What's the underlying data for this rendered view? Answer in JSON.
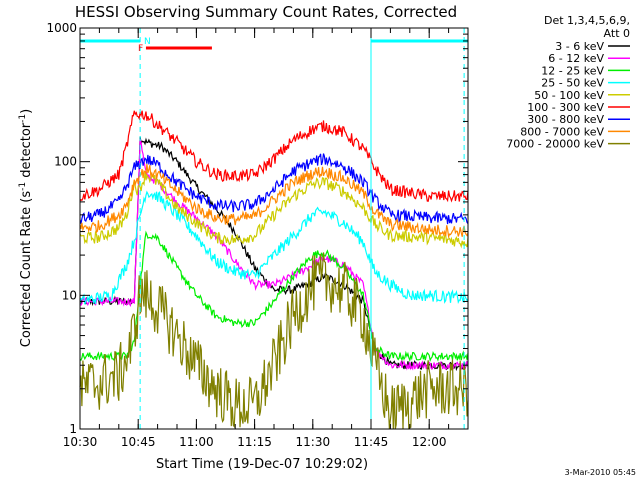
{
  "chart_data": {
    "type": "line",
    "title": "HESSI Observing Summary Count Rates, Corrected",
    "xlabel": "Start Time (19-Dec-07 10:29:02)",
    "ylabel_pre": "Corrected Count Rate (s",
    "ylabel_sup1": "-1",
    "ylabel_mid": " detector",
    "ylabel_sup2": "-1",
    "ylabel_post": ")",
    "y_scale": "log",
    "ylim": [
      1,
      1000
    ],
    "xlim_minutes": [
      0,
      100
    ],
    "x_ticks": [
      {
        "m": 0,
        "label": "10:30"
      },
      {
        "m": 15,
        "label": "10:45"
      },
      {
        "m": 30,
        "label": "11:00"
      },
      {
        "m": 45,
        "label": "11:15"
      },
      {
        "m": 60,
        "label": "11:30"
      },
      {
        "m": 75,
        "label": "11:45"
      },
      {
        "m": 90,
        "label": "12:00"
      }
    ],
    "y_ticks": [
      {
        "v": 1,
        "label": "1"
      },
      {
        "v": 10,
        "label": "10"
      },
      {
        "v": 100,
        "label": "100"
      },
      {
        "v": 1000,
        "label": "1000"
      }
    ],
    "legend_title_1": "Det 1,3,4,5,6,9,",
    "legend_title_2": "Att 0",
    "series": [
      {
        "name": "3 - 6 keV",
        "color": "#000000",
        "points": [
          [
            0,
            9
          ],
          [
            14,
            9
          ],
          [
            15.5,
            150
          ],
          [
            17,
            140
          ],
          [
            21,
            130
          ],
          [
            25,
            100
          ],
          [
            30,
            65
          ],
          [
            35,
            45
          ],
          [
            40,
            30
          ],
          [
            45,
            16
          ],
          [
            50,
            11
          ],
          [
            55,
            11
          ],
          [
            60,
            12.5
          ],
          [
            63,
            14
          ],
          [
            68,
            12
          ],
          [
            73,
            9
          ],
          [
            76,
            4
          ],
          [
            80,
            3
          ],
          [
            90,
            3
          ],
          [
            100,
            3
          ]
        ]
      },
      {
        "name": "6 - 12 keV",
        "color": "#ff00ff",
        "points": [
          [
            0,
            9
          ],
          [
            14,
            9
          ],
          [
            15.5,
            150
          ],
          [
            17,
            80
          ],
          [
            20,
            70
          ],
          [
            25,
            50
          ],
          [
            30,
            38
          ],
          [
            35,
            28
          ],
          [
            40,
            18
          ],
          [
            45,
            12
          ],
          [
            50,
            12
          ],
          [
            55,
            14
          ],
          [
            60,
            17
          ],
          [
            63,
            19
          ],
          [
            68,
            17
          ],
          [
            73,
            12
          ],
          [
            76,
            4
          ],
          [
            80,
            3
          ],
          [
            90,
            3
          ],
          [
            100,
            3
          ]
        ]
      },
      {
        "name": "12 - 25 keV",
        "color": "#00ee00",
        "points": [
          [
            0,
            3.5
          ],
          [
            12,
            3.5
          ],
          [
            14,
            4.5
          ],
          [
            15.5,
            12
          ],
          [
            17,
            29
          ],
          [
            20,
            27
          ],
          [
            25,
            16
          ],
          [
            30,
            10
          ],
          [
            35,
            7
          ],
          [
            40,
            6.2
          ],
          [
            45,
            6.2
          ],
          [
            50,
            9
          ],
          [
            55,
            14
          ],
          [
            60,
            20
          ],
          [
            63,
            21
          ],
          [
            68,
            16
          ],
          [
            73,
            10
          ],
          [
            76,
            4
          ],
          [
            80,
            3.5
          ],
          [
            90,
            3.5
          ],
          [
            100,
            3.5
          ]
        ]
      },
      {
        "name": "25 - 50 keV",
        "color": "#00ffff",
        "points": [
          [
            0,
            9
          ],
          [
            8,
            10
          ],
          [
            12,
            17
          ],
          [
            14,
            26
          ],
          [
            17,
            60
          ],
          [
            20,
            55
          ],
          [
            25,
            40
          ],
          [
            30,
            28
          ],
          [
            35,
            18
          ],
          [
            40,
            15
          ],
          [
            45,
            14
          ],
          [
            50,
            20
          ],
          [
            55,
            28
          ],
          [
            60,
            40
          ],
          [
            63,
            42
          ],
          [
            68,
            35
          ],
          [
            73,
            25
          ],
          [
            76,
            15
          ],
          [
            80,
            12
          ],
          [
            85,
            10
          ],
          [
            90,
            10
          ],
          [
            100,
            9.5
          ]
        ]
      },
      {
        "name": "50 - 100 keV",
        "color": "#cccc00",
        "points": [
          [
            0,
            27
          ],
          [
            5,
            27
          ],
          [
            10,
            32
          ],
          [
            12,
            40
          ],
          [
            14,
            70
          ],
          [
            15,
            60
          ],
          [
            17,
            80
          ],
          [
            20,
            70
          ],
          [
            25,
            45
          ],
          [
            30,
            35
          ],
          [
            35,
            27
          ],
          [
            40,
            26
          ],
          [
            45,
            28
          ],
          [
            50,
            40
          ],
          [
            55,
            55
          ],
          [
            60,
            68
          ],
          [
            63,
            70
          ],
          [
            68,
            60
          ],
          [
            73,
            45
          ],
          [
            76,
            34
          ],
          [
            80,
            28
          ],
          [
            90,
            27
          ],
          [
            100,
            25
          ]
        ]
      },
      {
        "name": "100 - 300 keV",
        "color": "#ff0000",
        "points": [
          [
            0,
            55
          ],
          [
            5,
            62
          ],
          [
            10,
            80
          ],
          [
            12,
            130
          ],
          [
            14,
            230
          ],
          [
            17,
            225
          ],
          [
            20,
            190
          ],
          [
            25,
            140
          ],
          [
            30,
            100
          ],
          [
            35,
            80
          ],
          [
            40,
            78
          ],
          [
            45,
            80
          ],
          [
            50,
            105
          ],
          [
            55,
            145
          ],
          [
            60,
            175
          ],
          [
            63,
            185
          ],
          [
            68,
            165
          ],
          [
            73,
            125
          ],
          [
            76,
            90
          ],
          [
            80,
            62
          ],
          [
            90,
            55
          ],
          [
            100,
            55
          ]
        ]
      },
      {
        "name": "300 - 800 keV",
        "color": "#0000ff",
        "points": [
          [
            0,
            37
          ],
          [
            5,
            40
          ],
          [
            10,
            50
          ],
          [
            12,
            65
          ],
          [
            14,
            90
          ],
          [
            17,
            105
          ],
          [
            20,
            95
          ],
          [
            25,
            70
          ],
          [
            30,
            55
          ],
          [
            35,
            47
          ],
          [
            40,
            46
          ],
          [
            45,
            48
          ],
          [
            50,
            62
          ],
          [
            55,
            85
          ],
          [
            60,
            100
          ],
          [
            63,
            105
          ],
          [
            68,
            92
          ],
          [
            73,
            70
          ],
          [
            76,
            52
          ],
          [
            80,
            40
          ],
          [
            90,
            38
          ],
          [
            100,
            37
          ]
        ]
      },
      {
        "name": "800 - 7000 keV",
        "color": "#ff8800",
        "points": [
          [
            0,
            32
          ],
          [
            5,
            33
          ],
          [
            10,
            40
          ],
          [
            12,
            48
          ],
          [
            14,
            70
          ],
          [
            17,
            88
          ],
          [
            20,
            80
          ],
          [
            25,
            60
          ],
          [
            30,
            45
          ],
          [
            35,
            38
          ],
          [
            40,
            37
          ],
          [
            45,
            39
          ],
          [
            50,
            52
          ],
          [
            55,
            70
          ],
          [
            60,
            82
          ],
          [
            63,
            85
          ],
          [
            68,
            75
          ],
          [
            73,
            58
          ],
          [
            76,
            42
          ],
          [
            80,
            34
          ],
          [
            90,
            31
          ],
          [
            100,
            30
          ]
        ]
      },
      {
        "name": "7000 - 20000 keV",
        "color": "#808000",
        "points": [
          [
            0,
            2
          ],
          [
            10,
            2.5
          ],
          [
            13,
            4
          ],
          [
            15.5,
            10
          ],
          [
            17,
            10
          ],
          [
            20,
            8
          ],
          [
            25,
            5
          ],
          [
            30,
            3
          ],
          [
            35,
            2
          ],
          [
            40,
            1.5
          ],
          [
            45,
            1.5
          ],
          [
            50,
            3
          ],
          [
            55,
            7
          ],
          [
            60,
            12
          ],
          [
            63,
            13
          ],
          [
            68,
            11
          ],
          [
            73,
            7
          ],
          [
            76,
            3
          ],
          [
            80,
            1.3
          ],
          [
            90,
            2
          ],
          [
            100,
            2
          ]
        ]
      }
    ],
    "bars": [
      {
        "label": "",
        "color": "#00ffff",
        "m0": 0,
        "m1": 15.5
      },
      {
        "label": "",
        "color": "#00ffff",
        "m0": 75,
        "m1": 100
      },
      {
        "label": "F",
        "color": "#ff0000",
        "m0": 17,
        "m1": 34
      },
      {
        "label": "N",
        "color": "#00ffff",
        "m0": 17,
        "m1": 17
      }
    ],
    "vlines": [
      {
        "m": 15.5,
        "color": "#00ffff",
        "dashed": true
      },
      {
        "m": 75,
        "color": "#00ffff",
        "dashed": false
      },
      {
        "m": 99,
        "color": "#00ffff",
        "dashed": true
      }
    ]
  },
  "footer": {
    "stamp": "3-Mar-2010 05:45"
  }
}
